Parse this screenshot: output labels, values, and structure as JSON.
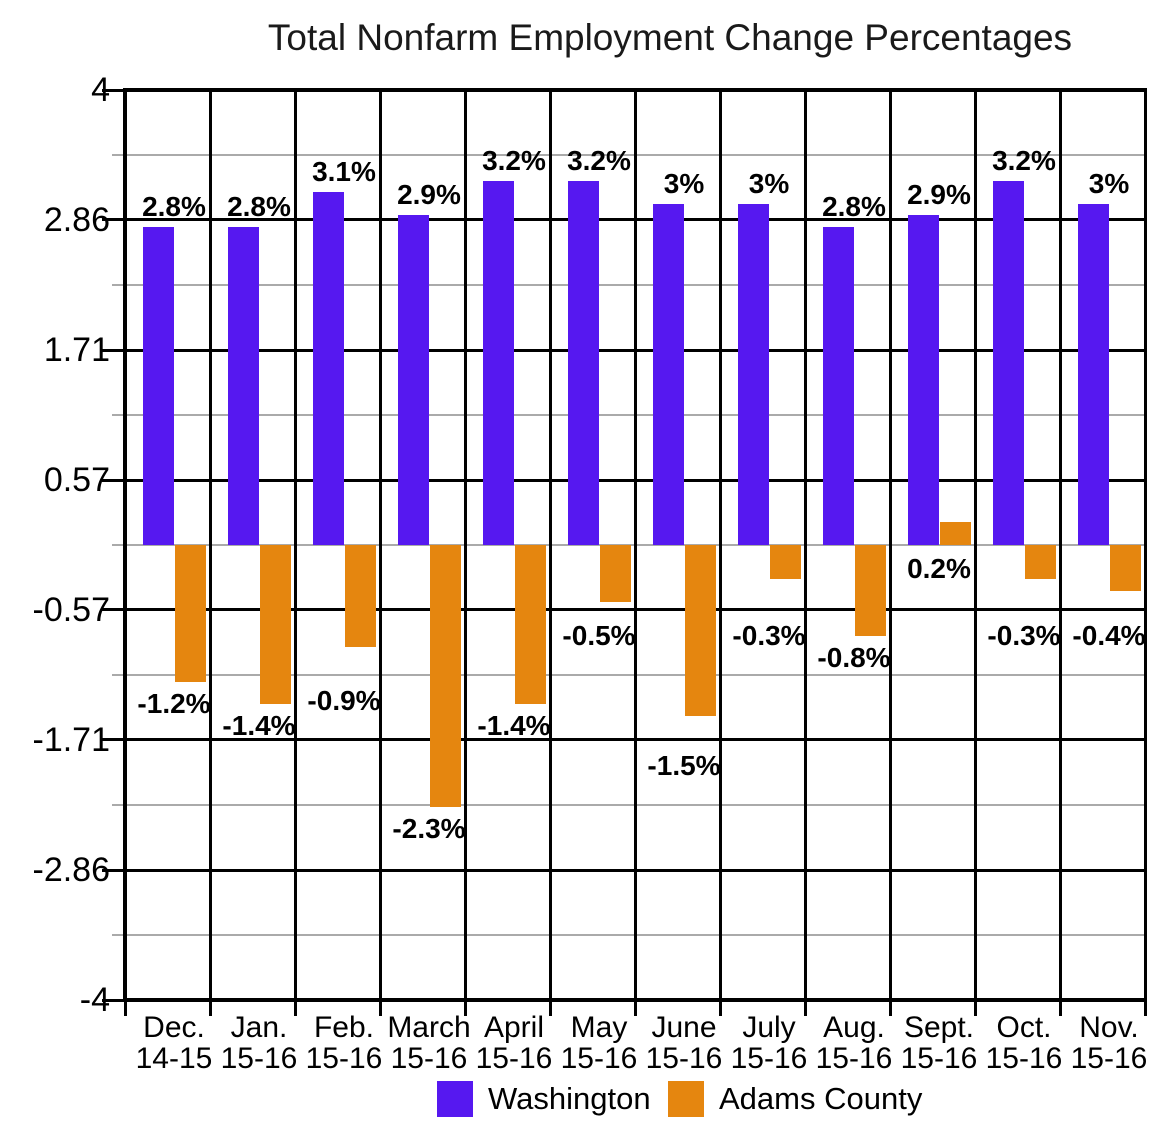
{
  "title": "Total Nonfarm Employment Change Percentages",
  "chart_data": {
    "type": "bar",
    "title": "Total Nonfarm Employment Change Percentages",
    "categories": [
      [
        "Dec.",
        "14-15"
      ],
      [
        "Jan.",
        "15-16"
      ],
      [
        "Feb.",
        "15-16"
      ],
      [
        "March",
        "15-16"
      ],
      [
        "April",
        "15-16"
      ],
      [
        "May",
        "15-16"
      ],
      [
        "June",
        "15-16"
      ],
      [
        "July",
        "15-16"
      ],
      [
        "Aug.",
        "15-16"
      ],
      [
        "Sept.",
        "15-16"
      ],
      [
        "Oct.",
        "15-16"
      ],
      [
        "Nov.",
        "15-16"
      ]
    ],
    "series": [
      {
        "name": "Washington",
        "color": "#5618F0",
        "values": [
          2.8,
          2.8,
          3.1,
          2.9,
          3.2,
          3.2,
          3.0,
          3.0,
          2.8,
          2.9,
          3.2,
          3.0
        ],
        "labels": [
          "2.8%",
          "2.8%",
          "3.1%",
          "2.9%",
          "3.2%",
          "3.2%",
          "3%",
          "3%",
          "2.8%",
          "2.9%",
          "3.2%",
          "3%"
        ]
      },
      {
        "name": "Adams County",
        "color": "#E5860F",
        "values": [
          -1.2,
          -1.4,
          -0.9,
          -2.3,
          -1.4,
          -0.5,
          -1.5,
          -0.3,
          -0.8,
          0.2,
          -0.3,
          -0.4
        ],
        "labels": [
          "-1.2%",
          "-1.4%",
          "-0.9%",
          "-2.3%",
          "-1.4%",
          "-0.5%",
          "-1.5%",
          "-0.3%",
          "-0.8%",
          "0.2%",
          "-0.3%",
          "-0.4%"
        ]
      }
    ],
    "y_axis": {
      "range": [
        -4,
        4
      ],
      "ticks": [
        4,
        2.86,
        1.71,
        0.57,
        -0.57,
        -1.71,
        -2.86,
        -4
      ],
      "tick_labels": [
        "4",
        "2.86",
        "1.71",
        "0.57",
        "-0.57",
        "-1.71",
        "-2.86",
        "-4"
      ],
      "minor_gridlines": [
        3.43,
        2.29,
        1.14,
        0,
        -1.14,
        -2.29,
        -3.43
      ]
    },
    "grid": true,
    "legend_position": "bottom",
    "colors": {
      "grid_major": "#000000",
      "grid_minor": "#AAAAAA",
      "text": "#000000",
      "background": "#FFFFFF"
    }
  }
}
